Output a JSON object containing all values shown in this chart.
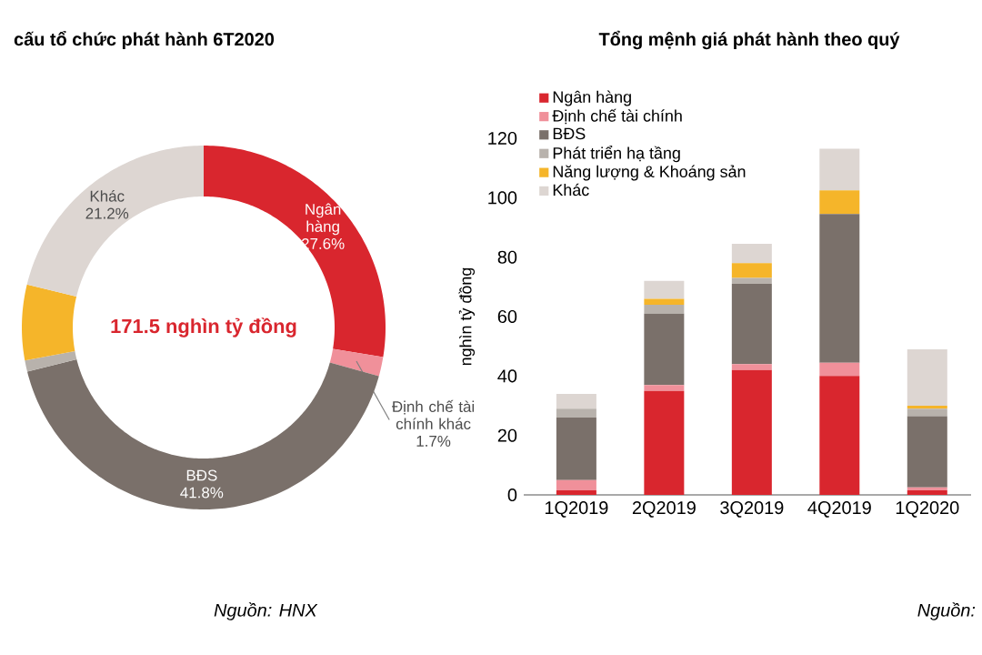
{
  "chart_data": [
    {
      "type": "donut",
      "title": "cấu tổ chức phát hành 6T2020",
      "categories": [
        "Ngân hàng",
        "Định chế tài chính khác",
        "BĐS",
        null,
        null,
        "Khác"
      ],
      "values": [
        27.6,
        1.7,
        41.8,
        1.0,
        6.7,
        21.2
      ],
      "colors": [
        "#d9262e",
        "#f0909a",
        "#7a706a",
        "#b8b2ac",
        "#f5b52a",
        "#ddd6d2"
      ],
      "value_labels": [
        "27.6%",
        "1.7%",
        "41.8%",
        null,
        null,
        "21.2%"
      ],
      "annotations": [
        "171.5 nghìn tỷ đồng",
        "Nguồn: HNX"
      ]
    },
    {
      "type": "bar",
      "stacked": true,
      "title": "Tổng mệnh giá phát hành theo quý",
      "ylabel": "nghìn tỷ đồng",
      "categories": [
        "1Q2019",
        "2Q2019",
        "3Q2019",
        "4Q2019",
        "1Q2020"
      ],
      "series": [
        {
          "name": "Ngân hàng",
          "color": "#d9262e",
          "values": [
            1.5,
            35,
            42,
            40,
            1.5
          ]
        },
        {
          "name": "Định chế tài chính",
          "color": "#f0909a",
          "values": [
            3.5,
            2,
            2,
            4.5,
            1
          ]
        },
        {
          "name": "BĐS",
          "color": "#7a706a",
          "values": [
            21,
            24,
            27,
            50,
            24
          ]
        },
        {
          "name": "Phát triển hạ tầng",
          "color": "#b8b2ac",
          "values": [
            3,
            3,
            2,
            0,
            2.5
          ]
        },
        {
          "name": "Năng lượng & Khoáng sản",
          "color": "#f5b52a",
          "values": [
            0,
            2,
            5,
            8,
            1
          ]
        },
        {
          "name": "Khác",
          "color": "#ddd6d2",
          "values": [
            5,
            6,
            6.5,
            14,
            19
          ]
        }
      ],
      "ylim": [
        0,
        120
      ],
      "yticks": [
        0,
        20,
        40,
        60,
        80,
        100,
        120
      ],
      "legend": "top left",
      "annotations": [
        "Nguồn:"
      ]
    }
  ]
}
